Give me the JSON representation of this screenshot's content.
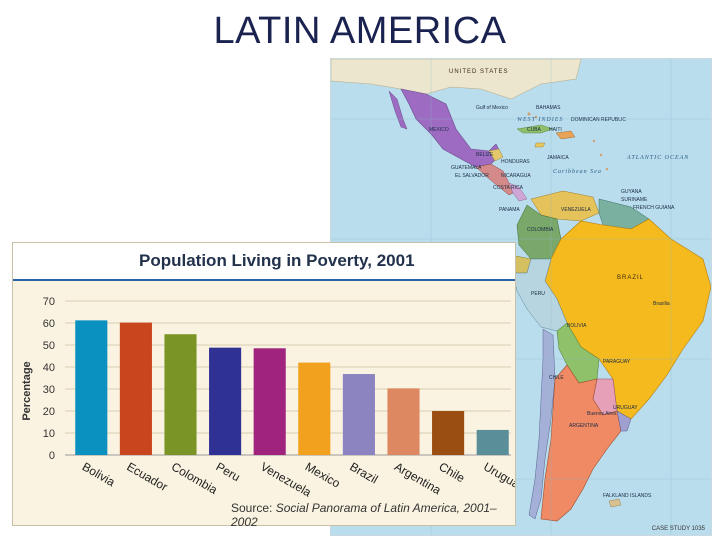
{
  "slide": {
    "title": "LATIN AMERICA"
  },
  "map": {
    "labels": {
      "united_states": "UNITED STATES",
      "gulf": "Gulf of Mexico",
      "bahamas": "BAHAMAS",
      "mexico": "MEXICO",
      "cuba": "CUBA",
      "haiti": "HAITI",
      "dominican": "DOMINICAN REPUBLIC",
      "belize": "BELIZE",
      "honduras": "HONDURAS",
      "jamaica": "JAMAICA",
      "guatemala": "GUATEMALA",
      "el_salvador": "EL SALVADOR",
      "nicaragua": "NICARAGUA",
      "costa_rica": "COSTA RICA",
      "panama": "PANAMA",
      "caribbean": "Caribbean Sea",
      "west_indies": "WEST INDIES",
      "atlantic": "ATLANTIC OCEAN",
      "venezuela": "VENEZUELA",
      "guyana": "GUYANA",
      "suriname": "SURINAME",
      "french_guiana": "FRENCH GUIANA",
      "colombia": "COLOMBIA",
      "brazil": "BRAZIL",
      "peru": "PERU",
      "bolivia": "BOLIVIA",
      "paraguay": "PARAGUAY",
      "chile": "CHILE",
      "uruguay": "URUGUAY",
      "argentina": "ARGENTINA",
      "buenos_aires": "Buenos Aires",
      "brasilia": "Brasília",
      "falklands": "FALKLAND ISLANDS"
    },
    "caption": "CASE STUDY 1035"
  },
  "chart_data": {
    "type": "bar",
    "title": "Population Living in Poverty, 2001",
    "ylabel": "Percentage",
    "xlabel": "",
    "ylim": [
      0,
      70
    ],
    "yticks": [
      0,
      10,
      20,
      30,
      40,
      50,
      60,
      70
    ],
    "categories": [
      "Bolivia",
      "Ecuador",
      "Colombia",
      "Peru",
      "Venezuela",
      "Mexico",
      "Brazil",
      "Argentina",
      "Chile",
      "Uruguay"
    ],
    "values": [
      61.2,
      60.2,
      54.9,
      48.8,
      48.5,
      42.0,
      36.8,
      30.3,
      20.0,
      11.4
    ],
    "colors": [
      "#0a91bf",
      "#c9451d",
      "#7a9426",
      "#2f3293",
      "#a0237e",
      "#f2a11e",
      "#8c84c0",
      "#dd8860",
      "#9a4e12",
      "#5a8f9a"
    ],
    "grid": true,
    "source_prefix": "Source: ",
    "source_title": "Social Panorama of Latin America, 2001–2002"
  }
}
